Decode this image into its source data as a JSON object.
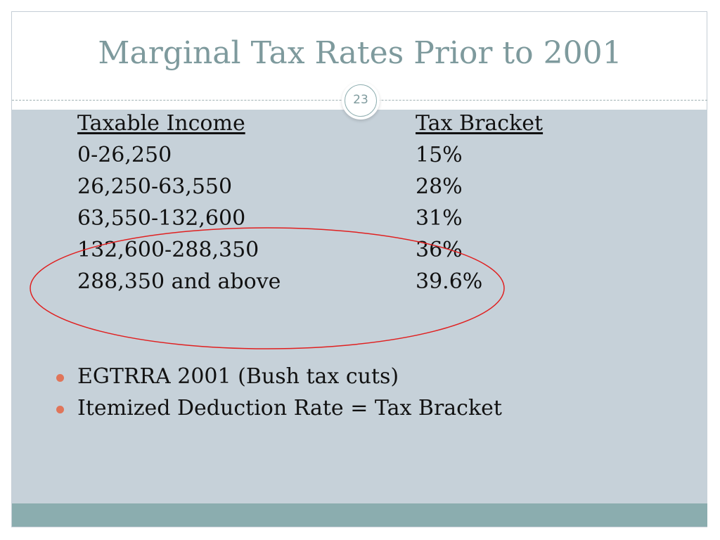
{
  "slide": {
    "title": "Marginal Tax Rates Prior to 2001",
    "number": "23"
  },
  "table": {
    "headers": [
      "Taxable Income",
      "Tax Bracket"
    ],
    "rows": [
      [
        "0-26,250",
        "15%"
      ],
      [
        "26,250-63,550",
        "28%"
      ],
      [
        "63,550-132,600",
        "31%"
      ],
      [
        "132,600-288,350",
        "36%"
      ],
      [
        "288,350 and above",
        "39.6%"
      ]
    ]
  },
  "bullets": [
    "EGTRRA 2001 (Bush tax cuts)",
    "Itemized Deduction Rate = Tax Bracket"
  ],
  "colors": {
    "title": "#7e9a9d",
    "content_background": "#c6d1d9",
    "footer_bar": "#8badaf",
    "bullet": "#e0755a",
    "annotation_ellipse": "#e02020"
  }
}
